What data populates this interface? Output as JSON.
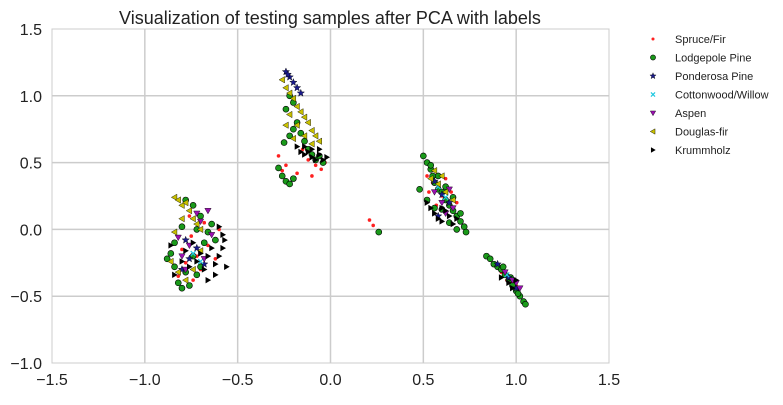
{
  "chart_data": {
    "type": "scatter",
    "title": "Visualization of testing samples after PCA with labels",
    "xlabel": "",
    "ylabel": "",
    "xlim": [
      -1.5,
      1.5
    ],
    "ylim": [
      -1.0,
      1.5
    ],
    "xticks": [
      -1.5,
      -1.0,
      -0.5,
      0.0,
      0.5,
      1.0,
      1.5
    ],
    "yticks": [
      -1.0,
      -0.5,
      0.0,
      0.5,
      1.0,
      1.5
    ],
    "xtick_labels": [
      "−1.5",
      "−1.0",
      "−0.5",
      "0.0",
      "0.5",
      "1.0",
      "1.5"
    ],
    "ytick_labels": [
      "−1.0",
      "−0.5",
      "0.0",
      "0.5",
      "1.0",
      "1.5"
    ],
    "grid": true,
    "legend_position": "outside-right",
    "series": [
      {
        "name": "Spruce/Fir",
        "marker": "dot",
        "color": "#ff2020",
        "points": [
          [
            -0.8,
            -0.15
          ],
          [
            -0.78,
            -0.25
          ],
          [
            -0.75,
            -0.05
          ],
          [
            -0.72,
            -0.2
          ],
          [
            -0.7,
            -0.3
          ],
          [
            -0.82,
            -0.35
          ],
          [
            -0.66,
            -0.12
          ],
          [
            -0.62,
            -0.22
          ],
          [
            -0.76,
            0.1
          ],
          [
            -0.68,
            0.05
          ],
          [
            -0.6,
            0.0
          ],
          [
            -0.74,
            -0.38
          ],
          [
            -0.28,
            0.55
          ],
          [
            -0.24,
            0.48
          ],
          [
            -0.2,
            0.38
          ],
          [
            -0.18,
            0.42
          ],
          [
            -0.15,
            0.6
          ],
          [
            -0.12,
            0.52
          ],
          [
            -0.08,
            0.48
          ],
          [
            -0.05,
            0.45
          ],
          [
            -0.22,
            0.35
          ],
          [
            -0.26,
            0.44
          ],
          [
            -0.1,
            0.4
          ],
          [
            -0.03,
            0.5
          ],
          [
            0.52,
            0.4
          ],
          [
            0.55,
            0.35
          ],
          [
            0.58,
            0.3
          ],
          [
            0.6,
            0.25
          ],
          [
            0.62,
            0.38
          ],
          [
            0.65,
            0.28
          ],
          [
            0.68,
            0.2
          ],
          [
            0.57,
            0.18
          ],
          [
            0.53,
            0.28
          ],
          [
            0.21,
            0.07
          ],
          [
            0.23,
            0.03
          ],
          [
            0.92,
            -0.32
          ],
          [
            0.95,
            -0.38
          ],
          [
            0.98,
            -0.4
          ],
          [
            1.0,
            -0.42
          ]
        ]
      },
      {
        "name": "Lodgepole Pine",
        "marker": "circle",
        "color": "#1a9a1a",
        "points": [
          [
            -0.86,
            -0.18
          ],
          [
            -0.84,
            -0.28
          ],
          [
            -0.82,
            -0.4
          ],
          [
            -0.8,
            -0.44
          ],
          [
            -0.78,
            -0.32
          ],
          [
            -0.76,
            -0.42
          ],
          [
            -0.74,
            -0.2
          ],
          [
            -0.72,
            -0.34
          ],
          [
            -0.7,
            -0.28
          ],
          [
            -0.68,
            -0.1
          ],
          [
            -0.66,
            -0.02
          ],
          [
            -0.64,
            0.04
          ],
          [
            -0.7,
            0.1
          ],
          [
            -0.74,
            0.18
          ],
          [
            -0.78,
            0.22
          ],
          [
            -0.62,
            -0.08
          ],
          [
            -0.84,
            -0.1
          ],
          [
            -0.88,
            -0.22
          ],
          [
            -0.72,
            0.0
          ],
          [
            -0.8,
            0.02
          ],
          [
            -0.26,
            0.4
          ],
          [
            -0.24,
            0.36
          ],
          [
            -0.22,
            0.34
          ],
          [
            -0.2,
            0.38
          ],
          [
            -0.28,
            0.46
          ],
          [
            -0.25,
            0.65
          ],
          [
            -0.22,
            0.7
          ],
          [
            -0.2,
            0.75
          ],
          [
            -0.18,
            0.8
          ],
          [
            -0.16,
            0.72
          ],
          [
            -0.14,
            0.66
          ],
          [
            -0.12,
            0.6
          ],
          [
            -0.1,
            0.56
          ],
          [
            -0.08,
            0.52
          ],
          [
            -0.06,
            0.55
          ],
          [
            -0.04,
            0.5
          ],
          [
            -0.24,
            0.9
          ],
          [
            -0.22,
            1.0
          ],
          [
            -0.2,
            0.95
          ],
          [
            0.5,
            0.55
          ],
          [
            0.52,
            0.5
          ],
          [
            0.54,
            0.45
          ],
          [
            0.55,
            0.4
          ],
          [
            0.56,
            0.35
          ],
          [
            0.58,
            0.3
          ],
          [
            0.6,
            0.28
          ],
          [
            0.62,
            0.22
          ],
          [
            0.64,
            0.18
          ],
          [
            0.66,
            0.14
          ],
          [
            0.68,
            0.1
          ],
          [
            0.7,
            0.06
          ],
          [
            0.72,
            0.02
          ],
          [
            0.7,
            0.12
          ],
          [
            0.66,
            0.24
          ],
          [
            0.62,
            0.32
          ],
          [
            0.58,
            0.4
          ],
          [
            0.54,
            0.48
          ],
          [
            0.6,
            0.15
          ],
          [
            0.64,
            0.05
          ],
          [
            0.68,
            0.0
          ],
          [
            0.73,
            -0.02
          ],
          [
            0.48,
            0.3
          ],
          [
            0.52,
            0.22
          ],
          [
            0.56,
            0.16
          ],
          [
            0.26,
            -0.02
          ],
          [
            0.84,
            -0.2
          ],
          [
            0.86,
            -0.22
          ],
          [
            0.88,
            -0.26
          ],
          [
            0.9,
            -0.28
          ],
          [
            0.92,
            -0.3
          ],
          [
            0.94,
            -0.34
          ],
          [
            0.96,
            -0.38
          ],
          [
            0.98,
            -0.42
          ],
          [
            1.0,
            -0.46
          ],
          [
            1.02,
            -0.5
          ],
          [
            1.04,
            -0.54
          ],
          [
            1.05,
            -0.56
          ],
          [
            1.01,
            -0.48
          ],
          [
            0.97,
            -0.36
          ],
          [
            0.93,
            -0.28
          ]
        ]
      },
      {
        "name": "Ponderosa Pine",
        "marker": "star",
        "color": "#1a1a8c",
        "points": [
          [
            -0.8,
            -0.3
          ],
          [
            -0.76,
            -0.22
          ],
          [
            -0.72,
            -0.14
          ],
          [
            -0.68,
            -0.26
          ],
          [
            -0.78,
            -0.08
          ],
          [
            -0.24,
            1.18
          ],
          [
            -0.22,
            1.14
          ],
          [
            -0.2,
            1.1
          ],
          [
            -0.18,
            1.06
          ],
          [
            -0.16,
            1.02
          ],
          [
            -0.23,
            1.16
          ],
          [
            0.56,
            0.36
          ],
          [
            0.6,
            0.26
          ],
          [
            0.64,
            0.2
          ],
          [
            0.58,
            0.1
          ],
          [
            0.9,
            -0.26
          ],
          [
            0.96,
            -0.36
          ],
          [
            1.0,
            -0.44
          ]
        ]
      },
      {
        "name": "Cottonwood/Willow",
        "marker": "x",
        "color": "#20c8e0",
        "points": [
          [
            -0.74,
            -0.18
          ],
          [
            -0.7,
            -0.24
          ],
          [
            0.58,
            0.32
          ],
          [
            0.62,
            0.24
          ],
          [
            0.95,
            -0.34
          ]
        ]
      },
      {
        "name": "Aspen",
        "marker": "triangle-down",
        "color": "#9a10b0",
        "points": [
          [
            -0.82,
            -0.06
          ],
          [
            -0.8,
            -0.2
          ],
          [
            -0.78,
            -0.3
          ],
          [
            -0.76,
            -0.12
          ],
          [
            -0.72,
            0.12
          ],
          [
            -0.7,
            0.06
          ],
          [
            -0.68,
            -0.22
          ],
          [
            -0.66,
            0.14
          ],
          [
            -0.64,
            -0.04
          ],
          [
            0.56,
            0.28
          ],
          [
            0.6,
            0.2
          ],
          [
            0.64,
            0.3
          ],
          [
            0.66,
            0.16
          ],
          [
            0.62,
            0.12
          ],
          [
            0.94,
            -0.32
          ],
          [
            0.98,
            -0.38
          ],
          [
            1.0,
            -0.4
          ],
          [
            1.02,
            -0.44
          ]
        ]
      },
      {
        "name": "Douglas-fir",
        "marker": "triangle-left",
        "color": "#c8c000",
        "points": [
          [
            -0.84,
            0.24
          ],
          [
            -0.82,
            0.22
          ],
          [
            -0.8,
            0.18
          ],
          [
            -0.78,
            0.2
          ],
          [
            -0.76,
            0.14
          ],
          [
            -0.74,
            0.08
          ],
          [
            -0.72,
            0.04
          ],
          [
            -0.7,
            0.0
          ],
          [
            -0.8,
            0.08
          ],
          [
            -0.84,
            -0.02
          ],
          [
            -0.86,
            -0.24
          ],
          [
            -0.82,
            -0.32
          ],
          [
            -0.78,
            -0.38
          ],
          [
            -0.74,
            -0.3
          ],
          [
            -0.7,
            -0.16
          ],
          [
            -0.26,
            1.12
          ],
          [
            -0.24,
            1.06
          ],
          [
            -0.22,
            1.02
          ],
          [
            -0.2,
            0.98
          ],
          [
            -0.18,
            0.92
          ],
          [
            -0.16,
            0.88
          ],
          [
            -0.14,
            0.84
          ],
          [
            -0.12,
            0.8
          ],
          [
            -0.1,
            0.74
          ],
          [
            -0.08,
            0.7
          ],
          [
            -0.06,
            0.66
          ],
          [
            -0.22,
            0.86
          ],
          [
            -0.18,
            0.78
          ],
          [
            -0.14,
            0.7
          ],
          [
            -0.1,
            0.64
          ],
          [
            -0.24,
            0.78
          ],
          [
            -0.2,
            0.68
          ],
          [
            0.54,
            0.38
          ],
          [
            0.58,
            0.34
          ],
          [
            0.62,
            0.28
          ],
          [
            0.66,
            0.22
          ],
          [
            0.56,
            0.44
          ],
          [
            0.6,
            0.4
          ]
        ]
      },
      {
        "name": "Krummholz",
        "marker": "triangle-right",
        "color": "#000000",
        "points": [
          [
            -0.8,
            -0.24
          ],
          [
            -0.78,
            -0.16
          ],
          [
            -0.76,
            -0.28
          ],
          [
            -0.74,
            -0.1
          ],
          [
            -0.72,
            -0.24
          ],
          [
            -0.7,
            -0.18
          ],
          [
            -0.68,
            -0.3
          ],
          [
            -0.66,
            -0.2
          ],
          [
            -0.64,
            -0.14
          ],
          [
            -0.62,
            -0.26
          ],
          [
            -0.6,
            -0.2
          ],
          [
            -0.58,
            -0.04
          ],
          [
            -0.56,
            -0.28
          ],
          [
            -0.62,
            -0.34
          ],
          [
            -0.66,
            -0.38
          ],
          [
            -0.84,
            -0.34
          ],
          [
            -0.86,
            -0.12
          ],
          [
            -0.58,
            -0.14
          ],
          [
            -0.6,
            0.02
          ],
          [
            -0.57,
            -0.08
          ],
          [
            -0.18,
            0.62
          ],
          [
            -0.16,
            0.58
          ],
          [
            -0.14,
            0.56
          ],
          [
            -0.12,
            0.58
          ],
          [
            -0.1,
            0.54
          ],
          [
            -0.08,
            0.52
          ],
          [
            -0.06,
            0.56
          ],
          [
            -0.04,
            0.52
          ],
          [
            -0.02,
            0.54
          ],
          [
            -0.14,
            0.62
          ],
          [
            -0.1,
            0.6
          ],
          [
            -0.06,
            0.6
          ],
          [
            0.52,
            0.2
          ],
          [
            0.54,
            0.16
          ],
          [
            0.56,
            0.12
          ],
          [
            0.58,
            0.08
          ],
          [
            0.6,
            0.06
          ],
          [
            0.62,
            0.14
          ],
          [
            0.64,
            0.1
          ],
          [
            0.66,
            0.04
          ],
          [
            0.68,
            0.08
          ],
          [
            0.6,
            0.16
          ],
          [
            0.92,
            -0.36
          ],
          [
            0.96,
            -0.4
          ],
          [
            0.98,
            -0.44
          ],
          [
            1.0,
            -0.38
          ]
        ]
      }
    ]
  }
}
